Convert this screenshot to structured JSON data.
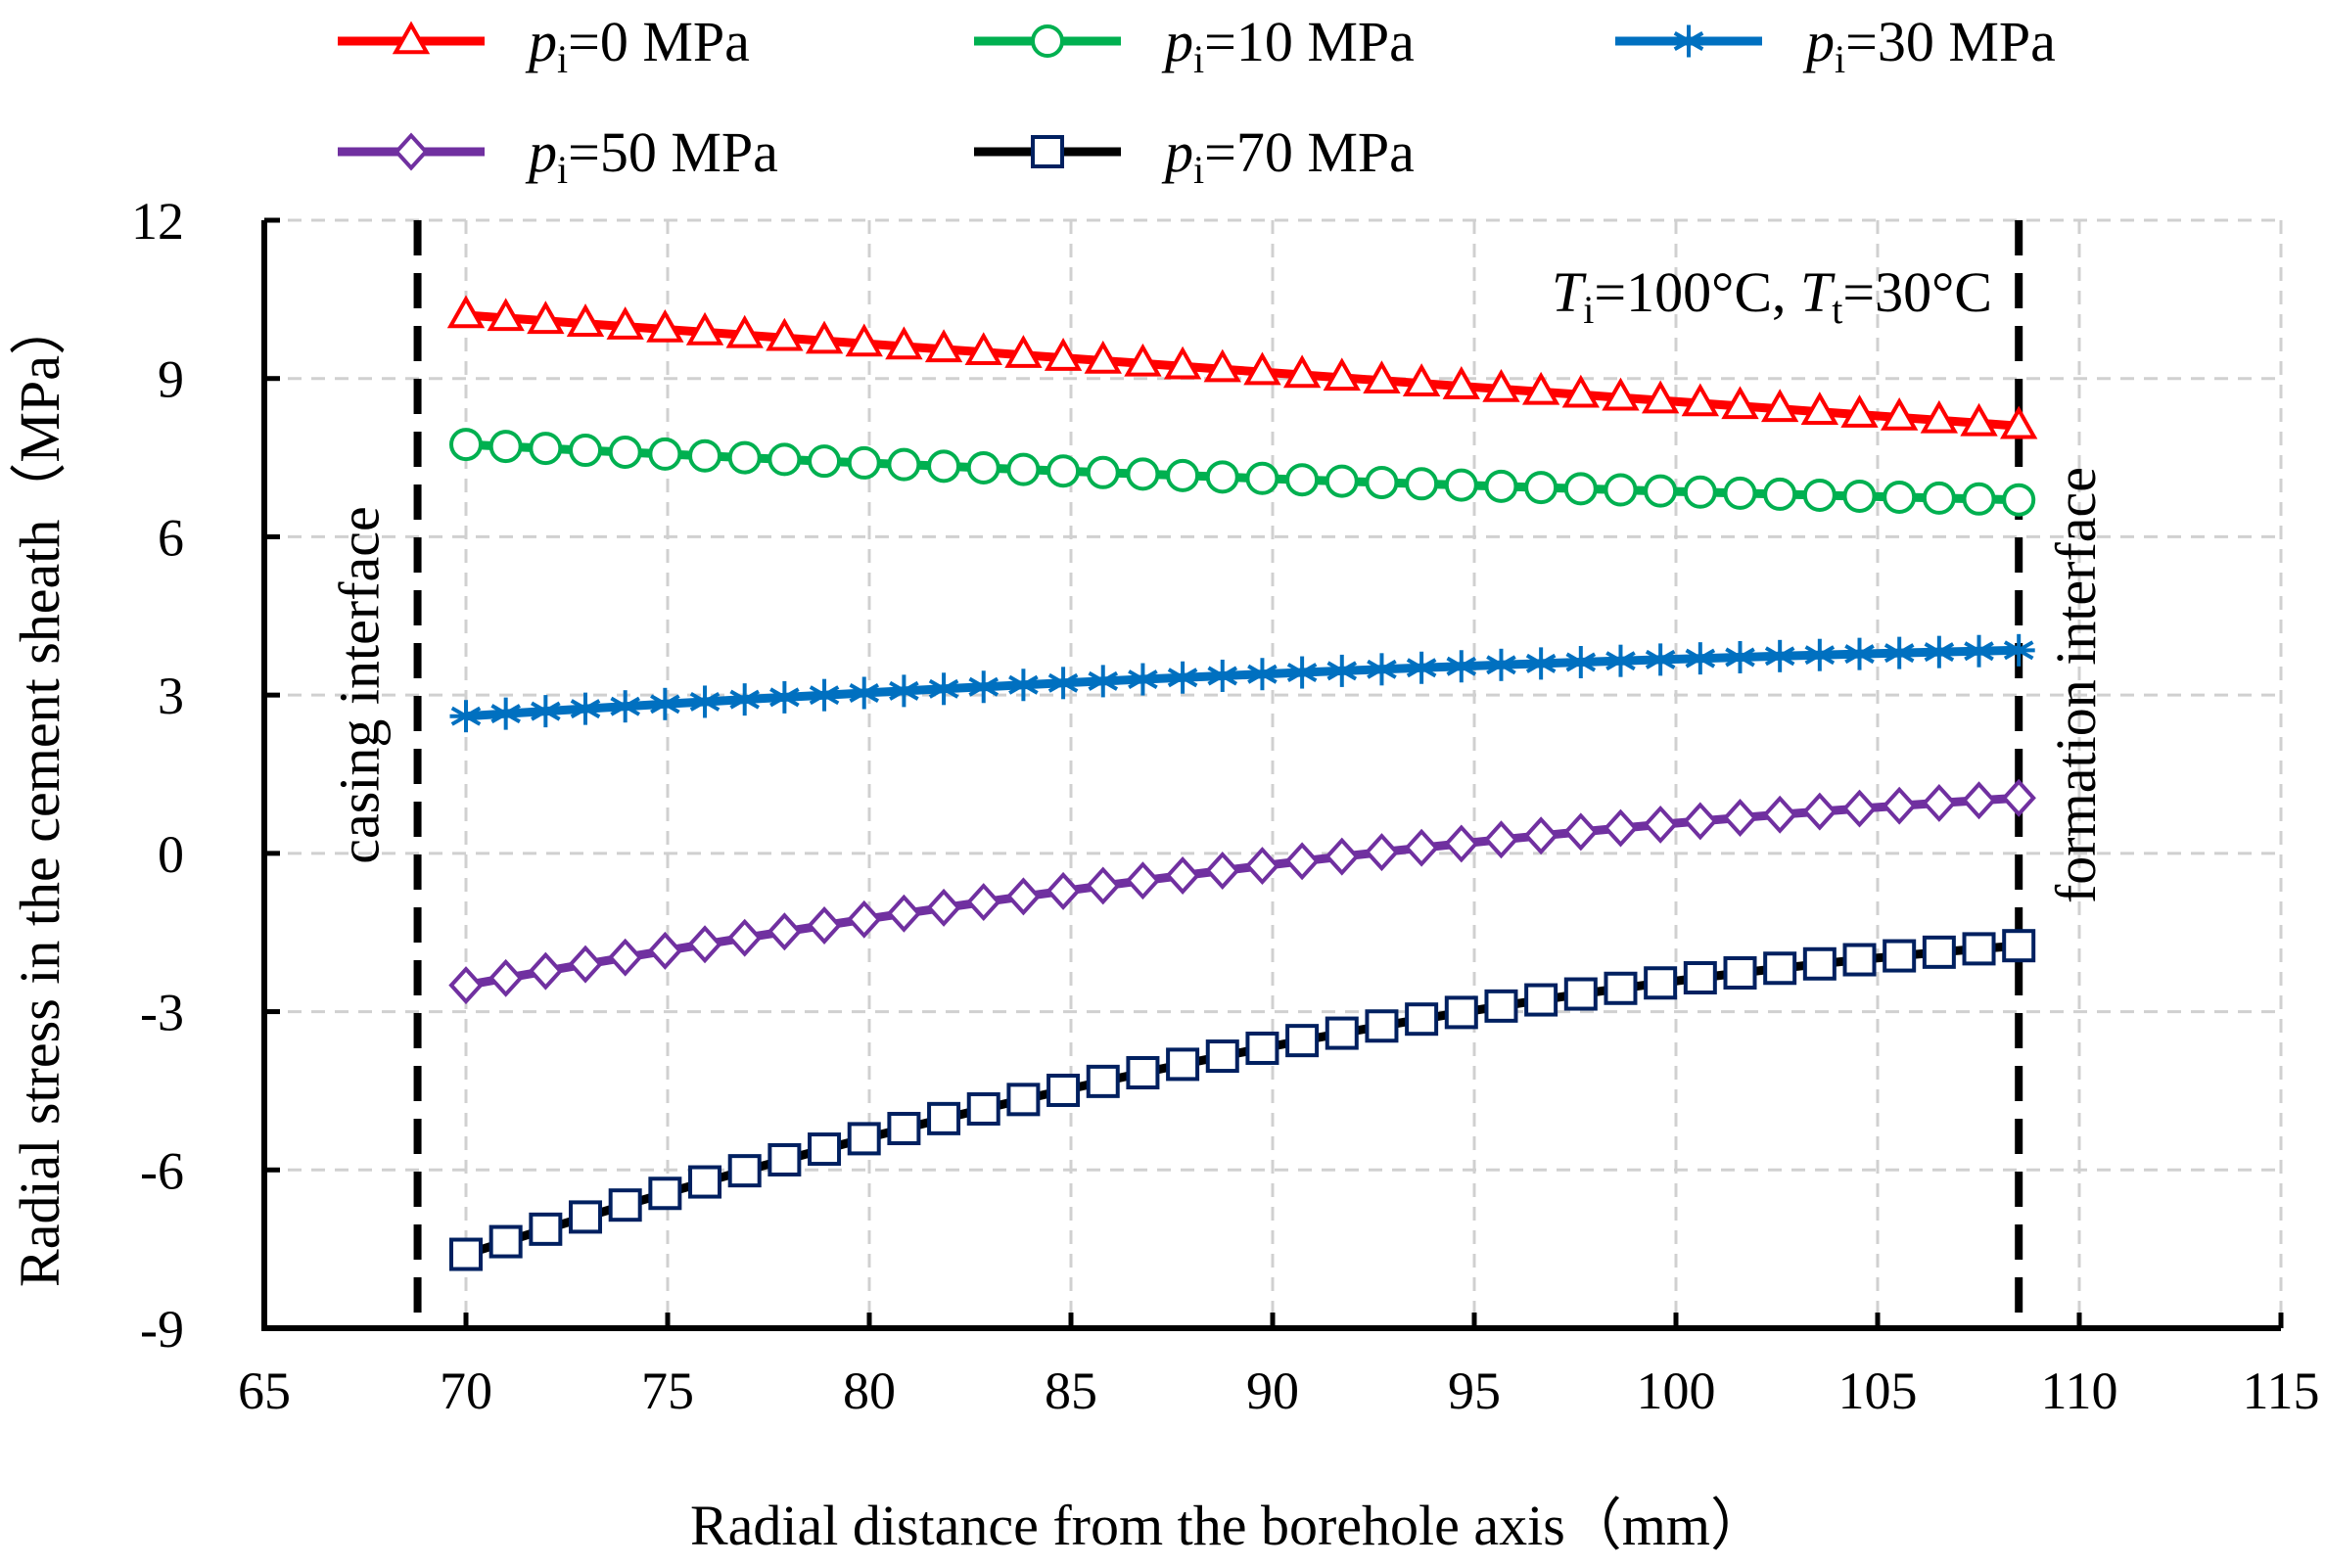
{
  "chart_data": {
    "type": "line",
    "xlabel": "Radial distance from  the borehole axis（mm）",
    "ylabel": "Radial stress in the cement sheath（MPa）",
    "xlim": [
      65,
      115
    ],
    "ylim": [
      -9,
      12
    ],
    "xticks": [
      65,
      70,
      75,
      80,
      85,
      90,
      95,
      100,
      105,
      110,
      115
    ],
    "yticks": [
      -9,
      -6,
      -3,
      0,
      3,
      6,
      9,
      12
    ],
    "xtick_labels": [
      "65",
      "70",
      "75",
      "80",
      "85",
      "90",
      "95",
      "100",
      "105",
      "110",
      "115"
    ],
    "ytick_labels": [
      "-9",
      "-6",
      "-3",
      "0",
      "3",
      "6",
      "9",
      "12"
    ],
    "grid": true,
    "legend_position": "top",
    "x_start": 70,
    "x_end": 108.5,
    "marker_count": 40,
    "series": [
      {
        "name": "p_i=0 MPa",
        "sym": "p",
        "sub": "i",
        "rest": "=0 MPa",
        "color": "#ff0000",
        "marker": "triangle",
        "start": 10.2,
        "end": 8.1,
        "curve": 0.0
      },
      {
        "name": "p_i=10 MPa",
        "sym": "p",
        "sub": "i",
        "rest": "=10 MPa",
        "color": "#00b050",
        "marker": "circle",
        "start": 7.75,
        "end": 6.7,
        "curve": 0.4
      },
      {
        "name": "p_i=30 MPa",
        "sym": "p",
        "sub": "i",
        "rest": "=30 MPa",
        "color": "#0070c0",
        "marker": "star",
        "start": 2.6,
        "end": 3.85,
        "curve": 0.5
      },
      {
        "name": "p_i=50 MPa",
        "sym": "p",
        "sub": "i",
        "rest": "=50 MPa",
        "color": "#7030a0",
        "marker": "diamond",
        "start": -2.5,
        "end": 1.05,
        "curve": 0.5
      },
      {
        "name": "p_i=70 MPa",
        "sym": "p",
        "sub": "i",
        "rest": "=70 MPa",
        "color": "#000000",
        "marker_color": "#002060",
        "marker": "square",
        "start": -7.6,
        "end": -1.75,
        "curve": 0.62
      }
    ],
    "vertical_lines": [
      {
        "x": 68.8,
        "label": "casing  interface"
      },
      {
        "x": 108.5,
        "label": "formation  interface"
      }
    ],
    "annotation": {
      "t1": "T",
      "s1": "i",
      "r1": "=100°C, ",
      "t2": "T",
      "s2": "t",
      "r2": "=30°C"
    }
  }
}
